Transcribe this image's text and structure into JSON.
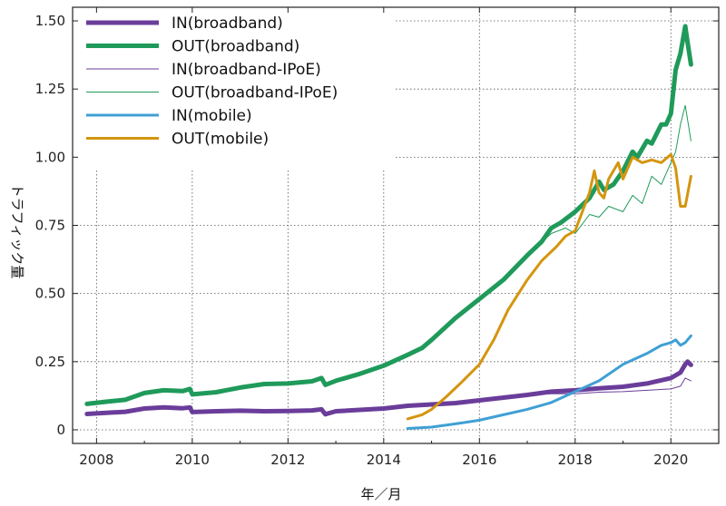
{
  "chart_data": {
    "type": "line",
    "xlabel": "年／月",
    "ylabel": "トラフィック量",
    "xlim": [
      2007.5,
      2021.0
    ],
    "ylim": [
      -0.05,
      1.55
    ],
    "xticks": [
      2008,
      2010,
      2012,
      2014,
      2016,
      2018,
      2020
    ],
    "xtick_labels": [
      "2008",
      "2010",
      "2012",
      "2014",
      "2016",
      "2018",
      "2020"
    ],
    "yticks": [
      0,
      0.25,
      0.5,
      0.75,
      1.0,
      1.25,
      1.5
    ],
    "ytick_labels": [
      "0",
      "0.25",
      "0.50",
      "0.75",
      "1.00",
      "1.25",
      "1.50"
    ],
    "grid": true,
    "legend_position": "top-left",
    "series": [
      {
        "name": "IN(broadband)",
        "color": "#6a3d9a",
        "width": 5,
        "points": [
          [
            2007.8,
            0.058
          ],
          [
            2008.2,
            0.062
          ],
          [
            2008.6,
            0.066
          ],
          [
            2009.0,
            0.078
          ],
          [
            2009.4,
            0.082
          ],
          [
            2009.8,
            0.079
          ],
          [
            2009.95,
            0.082
          ],
          [
            2010.0,
            0.065
          ],
          [
            2010.5,
            0.068
          ],
          [
            2011.0,
            0.07
          ],
          [
            2011.5,
            0.068
          ],
          [
            2012.0,
            0.069
          ],
          [
            2012.5,
            0.071
          ],
          [
            2012.7,
            0.075
          ],
          [
            2012.78,
            0.057
          ],
          [
            2013.0,
            0.068
          ],
          [
            2013.5,
            0.073
          ],
          [
            2014.0,
            0.078
          ],
          [
            2014.5,
            0.088
          ],
          [
            2015.0,
            0.093
          ],
          [
            2015.5,
            0.098
          ],
          [
            2016.0,
            0.108
          ],
          [
            2016.5,
            0.118
          ],
          [
            2017.0,
            0.128
          ],
          [
            2017.5,
            0.14
          ],
          [
            2018.0,
            0.145
          ],
          [
            2018.5,
            0.152
          ],
          [
            2019.0,
            0.158
          ],
          [
            2019.5,
            0.17
          ],
          [
            2020.0,
            0.19
          ],
          [
            2020.2,
            0.21
          ],
          [
            2020.3,
            0.24
          ],
          [
            2020.35,
            0.25
          ],
          [
            2020.42,
            0.238
          ]
        ]
      },
      {
        "name": "OUT(broadband)",
        "color": "#1f9a5a",
        "width": 5,
        "points": [
          [
            2007.8,
            0.095
          ],
          [
            2008.2,
            0.103
          ],
          [
            2008.6,
            0.11
          ],
          [
            2009.0,
            0.135
          ],
          [
            2009.4,
            0.145
          ],
          [
            2009.8,
            0.142
          ],
          [
            2009.95,
            0.15
          ],
          [
            2010.0,
            0.13
          ],
          [
            2010.5,
            0.138
          ],
          [
            2011.0,
            0.155
          ],
          [
            2011.5,
            0.168
          ],
          [
            2012.0,
            0.17
          ],
          [
            2012.5,
            0.178
          ],
          [
            2012.7,
            0.19
          ],
          [
            2012.78,
            0.165
          ],
          [
            2013.0,
            0.18
          ],
          [
            2013.5,
            0.205
          ],
          [
            2014.0,
            0.235
          ],
          [
            2014.5,
            0.275
          ],
          [
            2014.8,
            0.3
          ],
          [
            2015.0,
            0.33
          ],
          [
            2015.5,
            0.41
          ],
          [
            2016.0,
            0.48
          ],
          [
            2016.5,
            0.55
          ],
          [
            2017.0,
            0.64
          ],
          [
            2017.3,
            0.69
          ],
          [
            2017.5,
            0.74
          ],
          [
            2017.7,
            0.76
          ],
          [
            2018.0,
            0.8
          ],
          [
            2018.3,
            0.85
          ],
          [
            2018.5,
            0.91
          ],
          [
            2018.6,
            0.88
          ],
          [
            2018.8,
            0.9
          ],
          [
            2019.0,
            0.95
          ],
          [
            2019.2,
            1.02
          ],
          [
            2019.3,
            1.0
          ],
          [
            2019.5,
            1.06
          ],
          [
            2019.6,
            1.05
          ],
          [
            2019.8,
            1.12
          ],
          [
            2019.9,
            1.12
          ],
          [
            2020.0,
            1.16
          ],
          [
            2020.1,
            1.32
          ],
          [
            2020.2,
            1.38
          ],
          [
            2020.3,
            1.48
          ],
          [
            2020.35,
            1.42
          ],
          [
            2020.42,
            1.34
          ]
        ]
      },
      {
        "name": "IN(broadband-IPoE)",
        "color": "#6a3d9a",
        "width": 1,
        "points": [
          [
            2017.0,
            0.128
          ],
          [
            2017.5,
            0.132
          ],
          [
            2018.0,
            0.132
          ],
          [
            2018.5,
            0.138
          ],
          [
            2019.0,
            0.14
          ],
          [
            2019.5,
            0.145
          ],
          [
            2020.0,
            0.15
          ],
          [
            2020.2,
            0.16
          ],
          [
            2020.3,
            0.19
          ],
          [
            2020.42,
            0.18
          ]
        ]
      },
      {
        "name": "OUT(broadband-IPoE)",
        "color": "#1f9a5a",
        "width": 1,
        "points": [
          [
            2017.0,
            0.64
          ],
          [
            2017.5,
            0.72
          ],
          [
            2017.8,
            0.74
          ],
          [
            2018.0,
            0.72
          ],
          [
            2018.3,
            0.79
          ],
          [
            2018.5,
            0.78
          ],
          [
            2018.7,
            0.82
          ],
          [
            2019.0,
            0.8
          ],
          [
            2019.2,
            0.86
          ],
          [
            2019.4,
            0.83
          ],
          [
            2019.6,
            0.93
          ],
          [
            2019.8,
            0.9
          ],
          [
            2020.0,
            0.98
          ],
          [
            2020.1,
            1.02
          ],
          [
            2020.2,
            1.12
          ],
          [
            2020.3,
            1.19
          ],
          [
            2020.42,
            1.06
          ]
        ]
      },
      {
        "name": "IN(mobile)",
        "color": "#3fa0d4",
        "width": 3,
        "points": [
          [
            2014.5,
            0.005
          ],
          [
            2015.0,
            0.01
          ],
          [
            2015.5,
            0.022
          ],
          [
            2016.0,
            0.035
          ],
          [
            2016.5,
            0.055
          ],
          [
            2017.0,
            0.075
          ],
          [
            2017.5,
            0.1
          ],
          [
            2018.0,
            0.14
          ],
          [
            2018.5,
            0.18
          ],
          [
            2019.0,
            0.24
          ],
          [
            2019.5,
            0.28
          ],
          [
            2019.8,
            0.31
          ],
          [
            2020.0,
            0.32
          ],
          [
            2020.1,
            0.33
          ],
          [
            2020.2,
            0.31
          ],
          [
            2020.3,
            0.32
          ],
          [
            2020.42,
            0.345
          ]
        ]
      },
      {
        "name": "OUT(mobile)",
        "color": "#d4950f",
        "width": 3,
        "points": [
          [
            2014.5,
            0.04
          ],
          [
            2014.8,
            0.055
          ],
          [
            2015.0,
            0.075
          ],
          [
            2015.3,
            0.12
          ],
          [
            2015.6,
            0.17
          ],
          [
            2016.0,
            0.24
          ],
          [
            2016.3,
            0.33
          ],
          [
            2016.6,
            0.44
          ],
          [
            2017.0,
            0.55
          ],
          [
            2017.3,
            0.62
          ],
          [
            2017.6,
            0.67
          ],
          [
            2017.8,
            0.71
          ],
          [
            2018.0,
            0.73
          ],
          [
            2018.3,
            0.87
          ],
          [
            2018.4,
            0.95
          ],
          [
            2018.5,
            0.87
          ],
          [
            2018.6,
            0.85
          ],
          [
            2018.7,
            0.92
          ],
          [
            2018.9,
            0.98
          ],
          [
            2019.0,
            0.92
          ],
          [
            2019.2,
            1.0
          ],
          [
            2019.4,
            0.98
          ],
          [
            2019.6,
            0.99
          ],
          [
            2019.8,
            0.98
          ],
          [
            2020.0,
            1.01
          ],
          [
            2020.1,
            0.96
          ],
          [
            2020.2,
            0.82
          ],
          [
            2020.3,
            0.82
          ],
          [
            2020.42,
            0.93
          ]
        ]
      }
    ]
  }
}
